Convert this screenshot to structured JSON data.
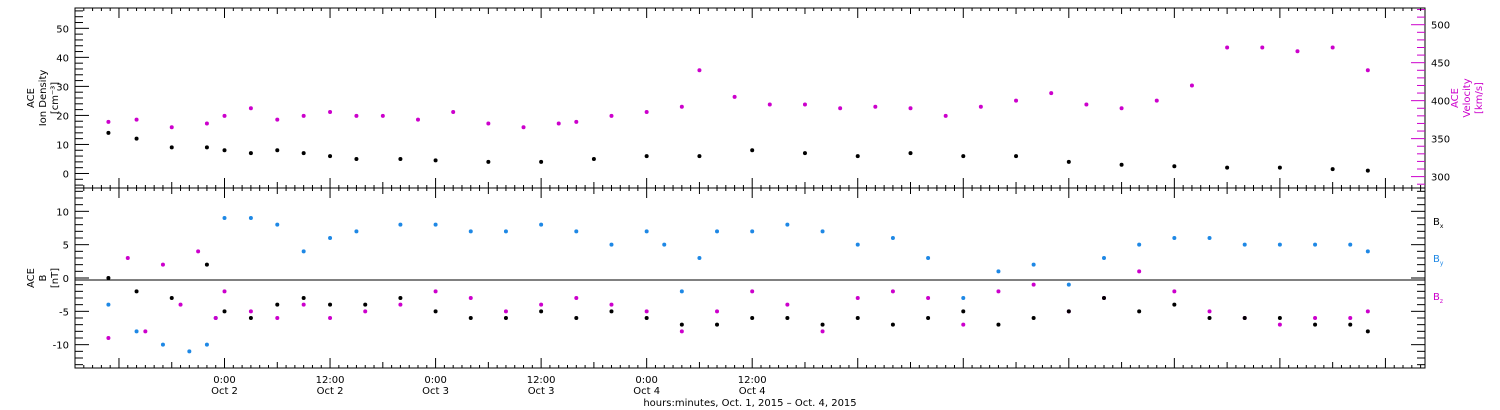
{
  "chart_data": [
    {
      "type": "scatter",
      "panel": "top",
      "ylabel": [
        "ACE",
        "Ion Density",
        "[cm⁻³]"
      ],
      "y2label": [
        "ACE",
        "Velocity",
        "[km/s]"
      ],
      "ylim": [
        -5,
        57
      ],
      "y_ticks": [
        "0",
        "10",
        "20",
        "30",
        "40",
        "50"
      ],
      "y_tick_values": [
        0,
        10,
        20,
        30,
        40,
        50
      ],
      "y2lim": [
        285,
        522
      ],
      "y2_ticks": [
        "300",
        "350",
        "400",
        "450",
        "500"
      ],
      "y2_tick_values": [
        300,
        350,
        400,
        450,
        500
      ],
      "colors": {
        "density": "#000000",
        "velocity": "#cc00cc"
      },
      "series": [
        {
          "key": "density",
          "axis": "left",
          "x": [
            -13.2,
            -10,
            -6,
            -2,
            0,
            3,
            6,
            9,
            12,
            15,
            20,
            24,
            30,
            36,
            42,
            48,
            54,
            60,
            66,
            72,
            78,
            84,
            90,
            96,
            102,
            108,
            114,
            120,
            126,
            130
          ],
          "values": [
            14,
            12,
            9,
            9,
            8,
            7,
            8,
            7,
            6,
            5,
            5,
            4.5,
            4,
            4,
            5,
            6,
            6,
            8,
            7,
            6,
            7,
            6,
            6,
            4,
            3,
            2.5,
            2,
            2,
            1.5,
            1
          ]
        },
        {
          "key": "velocity",
          "axis": "right",
          "x": [
            -13.2,
            -10,
            -6,
            -2,
            0,
            3,
            6,
            9,
            12,
            15,
            18,
            22,
            26,
            30,
            34,
            38,
            40,
            44,
            48,
            52,
            54,
            58,
            62,
            66,
            70,
            74,
            78,
            82,
            86,
            90,
            94,
            98,
            102,
            106,
            110,
            114,
            118,
            122,
            126,
            130
          ],
          "values": [
            372,
            375,
            365,
            370,
            380,
            390,
            375,
            380,
            385,
            380,
            380,
            375,
            385,
            370,
            365,
            370,
            372,
            380,
            385,
            392,
            440,
            405,
            395,
            395,
            390,
            392,
            390,
            380,
            392,
            400,
            410,
            395,
            390,
            400,
            420,
            470,
            470,
            465,
            470,
            440
          ]
        }
      ]
    },
    {
      "type": "scatter",
      "panel": "bottom",
      "ylabel": [
        "ACE",
        "B",
        "[nT]"
      ],
      "ylim": [
        -13.5,
        13.5
      ],
      "y_ticks": [
        "-10",
        "-5",
        "0",
        "5",
        "10"
      ],
      "y_tick_values": [
        -10,
        -5,
        0,
        5,
        10
      ],
      "legend": {
        "position": "right",
        "labels": [
          [
            "B",
            "x"
          ],
          [
            "B",
            "y"
          ],
          [
            "B",
            "z"
          ]
        ]
      },
      "colors": {
        "Bx": "#000000",
        "By": "#1e88e5",
        "Bz": "#cc00cc"
      },
      "series": [
        {
          "key": "Bx",
          "x": [
            -13.2,
            -10,
            -6,
            -2,
            0,
            3,
            6,
            9,
            12,
            16,
            20,
            24,
            28,
            32,
            36,
            40,
            44,
            48,
            52,
            56,
            60,
            64,
            68,
            72,
            76,
            80,
            84,
            88,
            92,
            96,
            100,
            104,
            108,
            112,
            116,
            120,
            124,
            128,
            130
          ],
          "values": [
            0,
            -2,
            -3,
            2,
            -5,
            -6,
            -4,
            -3,
            -4,
            -4,
            -3,
            -5,
            -6,
            -6,
            -5,
            -6,
            -5,
            -6,
            -7,
            -7,
            -6,
            -6,
            -7,
            -6,
            -7,
            -6,
            -5,
            -7,
            -6,
            -5,
            -3,
            -5,
            -4,
            -6,
            -6,
            -6,
            -7,
            -7,
            -8
          ]
        },
        {
          "key": "By",
          "x": [
            -13.2,
            -10,
            -7,
            -4,
            -2,
            -1,
            0,
            3,
            6,
            9,
            12,
            15,
            20,
            24,
            28,
            32,
            36,
            40,
            44,
            48,
            50,
            52,
            54,
            56,
            60,
            64,
            68,
            72,
            76,
            80,
            84,
            88,
            92,
            96,
            100,
            104,
            108,
            112,
            116,
            120,
            124,
            128,
            130
          ],
          "values": [
            -4,
            -8,
            -10,
            -11,
            -10,
            -6,
            9,
            9,
            8,
            4,
            6,
            7,
            8,
            8,
            7,
            7,
            8,
            7,
            5,
            7,
            5,
            -2,
            3,
            7,
            7,
            8,
            7,
            5,
            6,
            3,
            -3,
            1,
            2,
            -1,
            3,
            5,
            6,
            6,
            5,
            5,
            5,
            5,
            4
          ]
        },
        {
          "key": "Bz",
          "x": [
            -13.2,
            -11,
            -9,
            -7,
            -5,
            -3,
            -1,
            0,
            3,
            6,
            9,
            12,
            16,
            20,
            24,
            28,
            32,
            36,
            40,
            44,
            48,
            52,
            56,
            60,
            64,
            68,
            72,
            76,
            80,
            84,
            88,
            92,
            96,
            100,
            104,
            108,
            112,
            116,
            120,
            124,
            128,
            130
          ],
          "values": [
            -9,
            3,
            -8,
            2,
            -4,
            4,
            -6,
            -2,
            -5,
            -6,
            -4,
            -6,
            -5,
            -4,
            -2,
            -3,
            -5,
            -4,
            -3,
            -4,
            -5,
            -8,
            -5,
            -2,
            -4,
            -8,
            -3,
            -2,
            -3,
            -7,
            -2,
            -1,
            -5,
            -3,
            1,
            -2,
            -5,
            -6,
            -7,
            -6,
            -6,
            -5
          ]
        }
      ]
    }
  ],
  "x_axis": {
    "range_hours": [
      -17,
      136.5
    ],
    "ticks": [
      {
        "hour": 0,
        "time": "0:00",
        "date": "Oct 2"
      },
      {
        "hour": 12,
        "time": "12:00",
        "date": "Oct 2"
      },
      {
        "hour": 24,
        "time": "0:00",
        "date": "Oct 3"
      },
      {
        "hour": 36,
        "time": "12:00",
        "date": "Oct 3"
      },
      {
        "hour": 48,
        "time": "0:00",
        "date": "Oct 4"
      },
      {
        "hour": 60,
        "time": "12:00",
        "date": "Oct 4"
      }
    ],
    "label": "hours:minutes, Oct.  1, 2015 – Oct.  4, 2015"
  }
}
